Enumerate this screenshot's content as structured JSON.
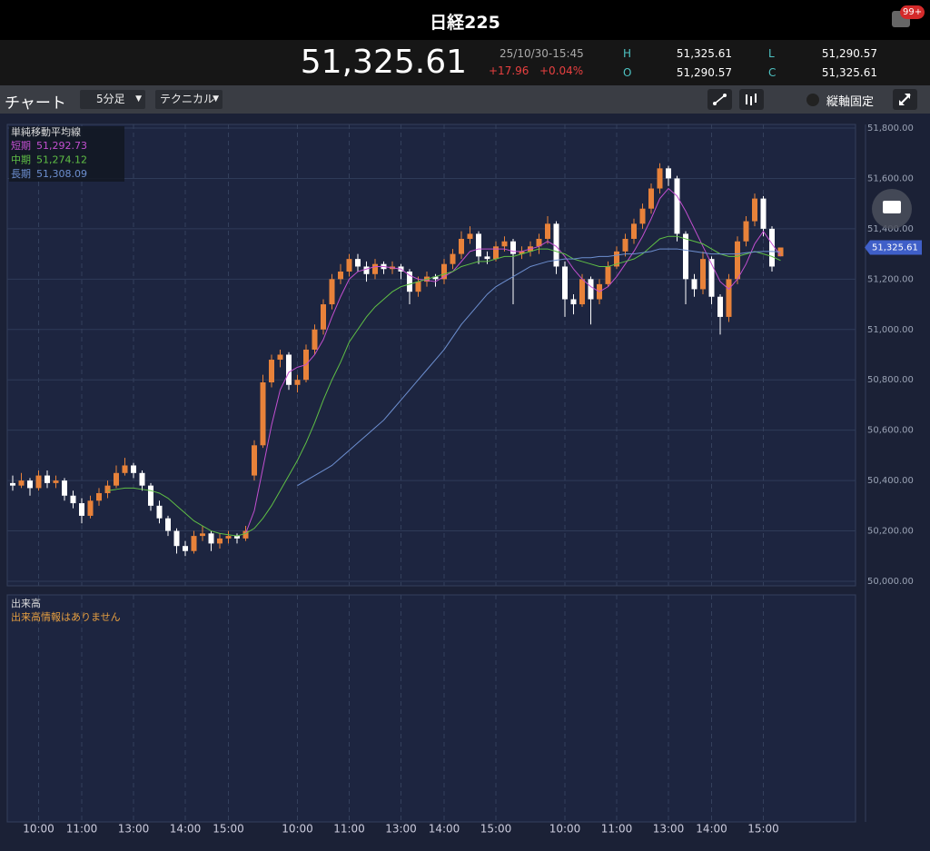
{
  "header": {
    "title": "日経225",
    "badge": "99+"
  },
  "quote": {
    "price": "51,325.61",
    "datetime": "25/10/30-15:45",
    "change": "+17.96",
    "change_pct": "+0.04%",
    "high_label": "H",
    "high": "51,325.61",
    "open_label": "O",
    "open": "51,290.57",
    "low_label": "L",
    "low": "51,290.57",
    "close_label": "C",
    "close": "51,325.61"
  },
  "toolbar": {
    "title": "チャート",
    "interval": "5分足",
    "technical": "テクニカル",
    "lock_axis": "縦軸固定"
  },
  "volume_panel": {
    "title": "出来高",
    "message": "出来高情報はありません"
  },
  "chart_data": {
    "type": "candlestick",
    "legend_title": "単純移動平均線",
    "ylim": [
      50000,
      51800
    ],
    "yticks": [
      {
        "value": 50000,
        "label": "50,000.00"
      },
      {
        "value": 50200,
        "label": "50,200.00"
      },
      {
        "value": 50400,
        "label": "50,400.00"
      },
      {
        "value": 50600,
        "label": "50,600.00"
      },
      {
        "value": 50800,
        "label": "50,800.00"
      },
      {
        "value": 51000,
        "label": "51,000.00"
      },
      {
        "value": 51200,
        "label": "51,200.00"
      },
      {
        "value": 51400,
        "label": "51,400.00"
      },
      {
        "value": 51600,
        "label": "51,600.00"
      },
      {
        "value": 51800,
        "label": "51,800.00"
      }
    ],
    "grid": true,
    "up_color": "#e8823a",
    "down_color": "#ffffff",
    "categories": [
      null,
      null,
      null,
      "10:00",
      null,
      null,
      null,
      null,
      "11:00",
      null,
      null,
      null,
      null,
      null,
      "13:00",
      null,
      null,
      null,
      null,
      null,
      "14:00",
      null,
      null,
      null,
      null,
      "15:00",
      null,
      null,
      null,
      null,
      null,
      null,
      null,
      "10:00",
      null,
      null,
      null,
      null,
      null,
      "11:00",
      null,
      null,
      null,
      null,
      null,
      "13:00",
      null,
      null,
      null,
      null,
      "14:00",
      null,
      null,
      null,
      null,
      null,
      "15:00",
      null,
      null,
      null,
      null,
      null,
      null,
      null,
      "10:00",
      null,
      null,
      null,
      null,
      null,
      "11:00",
      null,
      null,
      null,
      null,
      null,
      "13:00",
      null,
      null,
      null,
      null,
      "14:00",
      null,
      null,
      null,
      null,
      null,
      "15:00",
      null,
      null
    ],
    "ohlc": [
      [
        50390,
        50420,
        50360,
        50380
      ],
      [
        50380,
        50430,
        50370,
        50400
      ],
      [
        50400,
        50410,
        50340,
        50370
      ],
      [
        50370,
        50440,
        50360,
        50420
      ],
      [
        50420,
        50440,
        50370,
        50390
      ],
      [
        50390,
        50420,
        50370,
        50400
      ],
      [
        50400,
        50410,
        50320,
        50340
      ],
      [
        50340,
        50360,
        50290,
        50310
      ],
      [
        50310,
        50330,
        50230,
        50260
      ],
      [
        50260,
        50340,
        50250,
        50320
      ],
      [
        50320,
        50370,
        50300,
        50350
      ],
      [
        50350,
        50400,
        50330,
        50380
      ],
      [
        50380,
        50460,
        50370,
        50430
      ],
      [
        50430,
        50490,
        50420,
        50460
      ],
      [
        50460,
        50470,
        50410,
        50430
      ],
      [
        50430,
        50440,
        50360,
        50380
      ],
      [
        50380,
        50390,
        50280,
        50300
      ],
      [
        50300,
        50320,
        50230,
        50250
      ],
      [
        50250,
        50260,
        50180,
        50200
      ],
      [
        50200,
        50210,
        50110,
        50140
      ],
      [
        50140,
        50160,
        50100,
        50120
      ],
      [
        50120,
        50200,
        50110,
        50180
      ],
      [
        50180,
        50220,
        50160,
        50190
      ],
      [
        50190,
        50200,
        50120,
        50150
      ],
      [
        50150,
        50190,
        50130,
        50170
      ],
      [
        50170,
        50200,
        50150,
        50180
      ],
      [
        50180,
        50190,
        50150,
        50170
      ],
      [
        50170,
        50220,
        50160,
        50200
      ],
      [
        50420,
        50560,
        50400,
        50540
      ],
      [
        50540,
        50820,
        50530,
        50790
      ],
      [
        50790,
        50900,
        50770,
        50880
      ],
      [
        50880,
        50920,
        50850,
        50900
      ],
      [
        50900,
        50910,
        50760,
        50780
      ],
      [
        50780,
        50820,
        50750,
        50800
      ],
      [
        50800,
        50940,
        50790,
        50920
      ],
      [
        50920,
        51020,
        50900,
        51000
      ],
      [
        51000,
        51120,
        50980,
        51100
      ],
      [
        51100,
        51220,
        51080,
        51200
      ],
      [
        51200,
        51260,
        51180,
        51230
      ],
      [
        51230,
        51300,
        51210,
        51280
      ],
      [
        51280,
        51300,
        51230,
        51250
      ],
      [
        51250,
        51270,
        51190,
        51220
      ],
      [
        51220,
        51280,
        51200,
        51260
      ],
      [
        51260,
        51270,
        51220,
        51240
      ],
      [
        51240,
        51270,
        51220,
        51250
      ],
      [
        51250,
        51260,
        51200,
        51230
      ],
      [
        51230,
        51240,
        51100,
        51150
      ],
      [
        51150,
        51210,
        51130,
        51190
      ],
      [
        51190,
        51230,
        51170,
        51210
      ],
      [
        51210,
        51220,
        51170,
        51200
      ],
      [
        51200,
        51280,
        51180,
        51260
      ],
      [
        51260,
        51320,
        51240,
        51300
      ],
      [
        51300,
        51390,
        51280,
        51360
      ],
      [
        51360,
        51410,
        51340,
        51380
      ],
      [
        51380,
        51390,
        51260,
        51290
      ],
      [
        51290,
        51310,
        51260,
        51280
      ],
      [
        51280,
        51350,
        51270,
        51330
      ],
      [
        51330,
        51370,
        51310,
        51350
      ],
      [
        51350,
        51360,
        51100,
        51300
      ],
      [
        51300,
        51330,
        51280,
        51310
      ],
      [
        51310,
        51350,
        51290,
        51330
      ],
      [
        51330,
        51380,
        51300,
        51360
      ],
      [
        51360,
        51450,
        51340,
        51420
      ],
      [
        51420,
        51430,
        51220,
        51250
      ],
      [
        51250,
        51270,
        51050,
        51120
      ],
      [
        51120,
        51140,
        51060,
        51100
      ],
      [
        51100,
        51220,
        51090,
        51200
      ],
      [
        51200,
        51210,
        51020,
        51120
      ],
      [
        51120,
        51200,
        51100,
        51180
      ],
      [
        51180,
        51270,
        51170,
        51250
      ],
      [
        51250,
        51330,
        51240,
        51310
      ],
      [
        51310,
        51380,
        51290,
        51360
      ],
      [
        51360,
        51440,
        51340,
        51420
      ],
      [
        51420,
        51500,
        51400,
        51480
      ],
      [
        51480,
        51580,
        51460,
        51560
      ],
      [
        51560,
        51660,
        51540,
        51640
      ],
      [
        51640,
        51650,
        51570,
        51600
      ],
      [
        51600,
        51610,
        51350,
        51380
      ],
      [
        51380,
        51390,
        51100,
        51200
      ],
      [
        51200,
        51220,
        51130,
        51160
      ],
      [
        51160,
        51310,
        51140,
        51280
      ],
      [
        51280,
        51290,
        51100,
        51130
      ],
      [
        51130,
        51140,
        50980,
        51050
      ],
      [
        51050,
        51220,
        51030,
        51200
      ],
      [
        51200,
        51370,
        51180,
        51350
      ],
      [
        51350,
        51450,
        51330,
        51430
      ],
      [
        51430,
        51540,
        51410,
        51520
      ],
      [
        51520,
        51530,
        51370,
        51400
      ],
      [
        51400,
        51410,
        51230,
        51250
      ],
      [
        51290.57,
        51325.61,
        51290.57,
        51325.61
      ]
    ],
    "series": [
      {
        "name": "短期",
        "legend_value": "51,292.73",
        "color": "#c24fd0",
        "values": [
          null,
          null,
          null,
          null,
          null,
          null,
          null,
          null,
          null,
          null,
          null,
          null,
          null,
          null,
          null,
          null,
          null,
          null,
          null,
          null,
          null,
          null,
          null,
          null,
          null,
          null,
          null,
          50190,
          50280,
          50450,
          50620,
          50760,
          50830,
          50850,
          50860,
          50900,
          50960,
          51050,
          51130,
          51200,
          51230,
          51240,
          51250,
          51250,
          51245,
          51240,
          51215,
          51200,
          51195,
          51190,
          51210,
          51230,
          51270,
          51310,
          51320,
          51320,
          51320,
          51320,
          51310,
          51310,
          51320,
          51330,
          51350,
          51330,
          51290,
          51240,
          51200,
          51170,
          51150,
          51170,
          51210,
          51260,
          51310,
          51370,
          51440,
          51520,
          51560,
          51530,
          51470,
          51400,
          51330,
          51260,
          51190,
          51160,
          51200,
          51260,
          51340,
          51390,
          51340,
          51292.73
        ]
      },
      {
        "name": "中期",
        "legend_value": "51,274.12",
        "color": "#5fbf45",
        "values": [
          null,
          null,
          null,
          null,
          null,
          null,
          null,
          null,
          null,
          null,
          null,
          50360,
          50365,
          50370,
          50370,
          50365,
          50360,
          50350,
          50330,
          50300,
          50270,
          50240,
          50220,
          50200,
          50190,
          50185,
          50180,
          50190,
          50210,
          50250,
          50300,
          50360,
          50420,
          50480,
          50550,
          50630,
          50720,
          50800,
          50870,
          50950,
          51000,
          51050,
          51090,
          51120,
          51150,
          51170,
          51180,
          51190,
          51200,
          51210,
          51220,
          51230,
          51250,
          51260,
          51270,
          51270,
          51280,
          51290,
          51290,
          51300,
          51310,
          51320,
          51320,
          51310,
          51300,
          51280,
          51270,
          51260,
          51250,
          51250,
          51260,
          51270,
          51280,
          51300,
          51330,
          51360,
          51370,
          51370,
          51360,
          51350,
          51340,
          51320,
          51300,
          51290,
          51290,
          51300,
          51310,
          51300,
          51290,
          51274.12
        ]
      },
      {
        "name": "長期",
        "legend_value": "51,308.09",
        "color": "#6d8fd0",
        "values": [
          null,
          null,
          null,
          null,
          null,
          null,
          null,
          null,
          null,
          null,
          null,
          null,
          null,
          null,
          null,
          null,
          null,
          null,
          null,
          null,
          null,
          null,
          null,
          null,
          null,
          null,
          null,
          null,
          null,
          null,
          null,
          null,
          null,
          50380,
          50400,
          50420,
          50440,
          50460,
          50490,
          50520,
          50550,
          50580,
          50610,
          50640,
          50680,
          50720,
          50760,
          50800,
          50840,
          50880,
          50920,
          50970,
          51020,
          51060,
          51100,
          51140,
          51170,
          51190,
          51210,
          51230,
          51250,
          51260,
          51270,
          51275,
          51280,
          51280,
          51285,
          51285,
          51290,
          51290,
          51295,
          51300,
          51300,
          51305,
          51310,
          51320,
          51320,
          51320,
          51315,
          51310,
          51305,
          51300,
          51300,
          51300,
          51300,
          51305,
          51308,
          51310,
          51310,
          51308.09
        ]
      }
    ]
  }
}
